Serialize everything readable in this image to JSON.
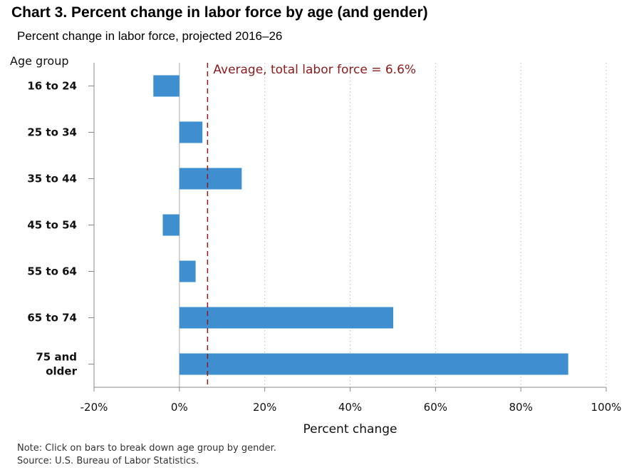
{
  "chart_data": {
    "type": "bar",
    "orientation": "horizontal",
    "title": "Chart 3. Percent change in labor force by age (and gender)",
    "subtitle": "Percent change in labor force, projected 2016–26",
    "ylabel": "Age group",
    "xlabel": "Percent change",
    "categories": [
      "16 to 24",
      "25 to 34",
      "35 to 44",
      "45 to 54",
      "55 to 64",
      "65 to 74",
      "75 and older"
    ],
    "values": [
      -6.1,
      5.4,
      14.6,
      -3.9,
      3.8,
      50.1,
      91.1
    ],
    "xlim": [
      -20,
      100
    ],
    "x_ticks": [
      -20,
      0,
      20,
      40,
      60,
      80,
      100
    ],
    "x_tick_labels": [
      "-20%",
      "0%",
      "20%",
      "40%",
      "60%",
      "80%",
      "100%"
    ],
    "reference_line": {
      "value": 6.6,
      "label": "Average, total labor force = 6.6%",
      "color": "#8b1a1a"
    },
    "bar_color": "#3f8fd0",
    "grid": true,
    "legend": "none"
  },
  "notes": {
    "note": "Note: Click on bars to break down age group by gender.",
    "source": "Source: U.S. Bureau of Labor Statistics."
  }
}
